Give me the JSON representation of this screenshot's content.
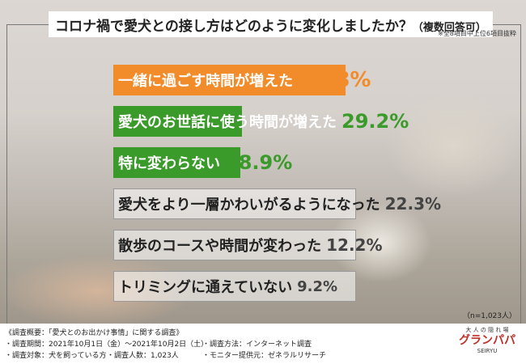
{
  "title": "コロナ禍で愛犬との接し方はどのように変化しましたか？",
  "title_suffix": "（複数回答可）",
  "note": "※全8項目中上位6項目抜粋",
  "sample": "（n=1,023人）",
  "chart_data": {
    "type": "bar",
    "orientation": "horizontal",
    "categories": [
      "一緒に過ごす時間が増えた",
      "愛犬のお世話に使う時間が増えた",
      "特に変わらない",
      "愛犬をより一層かわいがるようになった",
      "散歩のコースや時間が変わった",
      "トリミングに通えていない"
    ],
    "values": [
      52.8,
      29.2,
      28.9,
      22.3,
      12.2,
      9.2
    ],
    "value_labels": [
      "52.8%",
      "29.2%",
      "28.9%",
      "22.3%",
      "12.2%",
      "9.2%"
    ],
    "colors": [
      "#f28b2a",
      "#3a9a2a",
      "#3a9a2a",
      "#ffffff",
      "#ffffff",
      "#ffffff"
    ],
    "xlim": [
      0,
      100
    ]
  },
  "footer": {
    "summary": "《調査概要：「愛犬とのお出かけ事情」に関する調査》",
    "period": "・調査期間：2021年10月1日（金）～2021年10月2日（土）",
    "method": "・調査方法：インターネット調査",
    "target": "・調査対象：犬を飼っている方",
    "count": "・調査人数：1,023人",
    "provider": "・モニター提供元：ゼネラルリサーチ"
  },
  "logo": {
    "tagline": "大 人 の 隠 れ 場",
    "romaji": "SEIRYU",
    "name": "グランパパ"
  }
}
